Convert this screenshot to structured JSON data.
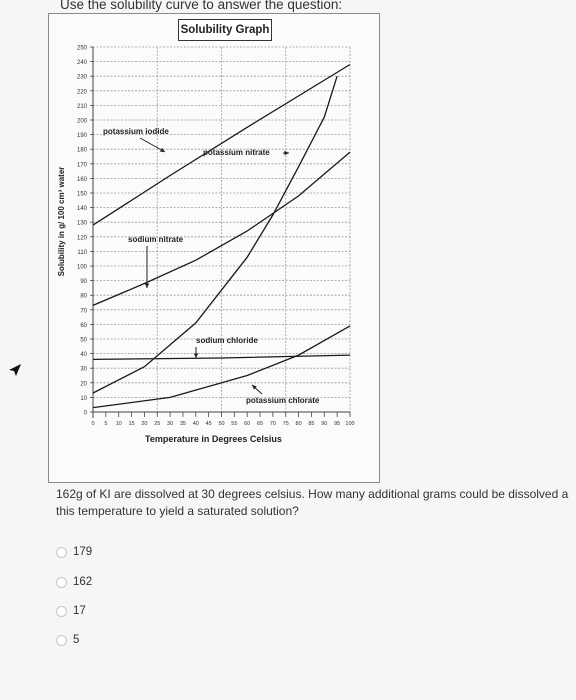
{
  "instruction": "Use the solubility curve to answer the question:",
  "chart_data": {
    "type": "line",
    "title": "Solubility Graph",
    "xlabel": "Temperature in Degrees Celsius",
    "ylabel": "Solubility in g/ 100 cm³ water",
    "xlim": [
      0,
      100
    ],
    "ylim": [
      0,
      250
    ],
    "xticks": [
      "0",
      "5",
      "10",
      "15",
      "20",
      "25",
      "30",
      "35",
      "40",
      "45",
      "50",
      "55",
      "60",
      "65",
      "70",
      "75",
      "80",
      "85",
      "90",
      "95",
      "100"
    ],
    "yticks": [
      "0",
      "10",
      "20",
      "30",
      "40",
      "50",
      "60",
      "70",
      "80",
      "90",
      "100",
      "110",
      "120",
      "130",
      "140",
      "150",
      "160",
      "170",
      "180",
      "190",
      "200",
      "210",
      "220",
      "230",
      "240",
      "250"
    ],
    "grid": true,
    "series": [
      {
        "name": "potassium iodide",
        "x": [
          0,
          30,
          60,
          100
        ],
        "y": [
          128,
          162,
          195,
          238
        ]
      },
      {
        "name": "potassium nitrate",
        "x": [
          0,
          20,
          40,
          60,
          70,
          80,
          90,
          95
        ],
        "y": [
          13,
          31,
          61,
          106,
          135,
          168,
          202,
          230
        ]
      },
      {
        "name": "sodium nitrate",
        "x": [
          0,
          20,
          40,
          60,
          80,
          100
        ],
        "y": [
          73,
          88,
          104,
          124,
          148,
          178
        ]
      },
      {
        "name": "sodium chloride",
        "x": [
          0,
          50,
          100
        ],
        "y": [
          36,
          37,
          39
        ]
      },
      {
        "name": "potassium chlorate",
        "x": [
          0,
          30,
          60,
          80,
          100
        ],
        "y": [
          3,
          10,
          25,
          39,
          59
        ]
      }
    ],
    "annotations": [
      "potassium iodide",
      "potassium nitrate",
      "sodium nitrate",
      "sodium chloride",
      "potassium chlorate"
    ]
  },
  "question": {
    "line1": "162g of KI are dissolved at 30 degrees celsius. How many additional grams could be dissolved a",
    "line2": "this temperature to yield a saturated solution?"
  },
  "options": [
    "179",
    "162",
    "17",
    "5"
  ]
}
